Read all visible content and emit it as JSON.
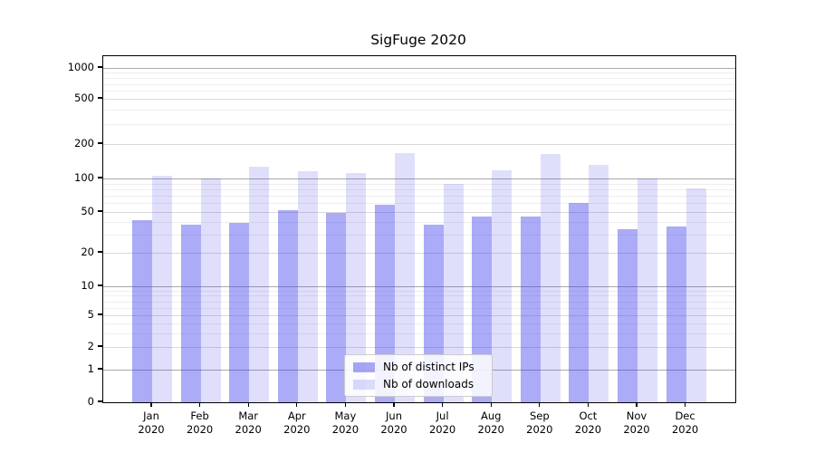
{
  "chart_data": {
    "type": "bar",
    "title": "SigFuge 2020",
    "categories": [
      "Jan 2020",
      "Feb 2020",
      "Mar 2020",
      "Apr 2020",
      "May 2020",
      "Jun 2020",
      "Jul 2020",
      "Aug 2020",
      "Sep 2020",
      "Oct 2020",
      "Nov 2020",
      "Dec 2020"
    ],
    "series": [
      {
        "name": "Nb of distinct IPs",
        "values": [
          42,
          38,
          39,
          52,
          49,
          58,
          38,
          45,
          45,
          60,
          34,
          36
        ],
        "color": "#3737eb",
        "alpha": 0.42
      },
      {
        "name": "Nb of downloads",
        "values": [
          105,
          100,
          128,
          116,
          112,
          168,
          89,
          117,
          165,
          131,
          100,
          82
        ],
        "color": "#3737eb",
        "alpha": 0.16
      }
    ],
    "xlabel": "",
    "ylabel": "",
    "yscale": "asinh (log-like, linear below 1)",
    "y_tick_labels": [
      "0",
      "1",
      "2",
      "5",
      "10",
      "20",
      "50",
      "100",
      "200",
      "500",
      "1000"
    ],
    "ylim": [
      0,
      1200
    ],
    "grid": "major and minor horizontal gridlines",
    "legend_position": "lower center inside plot",
    "colors": {
      "spine": "#000000",
      "grid_power10": "#a9a9a9",
      "grid_labeled": "#d9d9d9",
      "grid_minor": "#eeeeee",
      "background": "#ffffff"
    }
  }
}
